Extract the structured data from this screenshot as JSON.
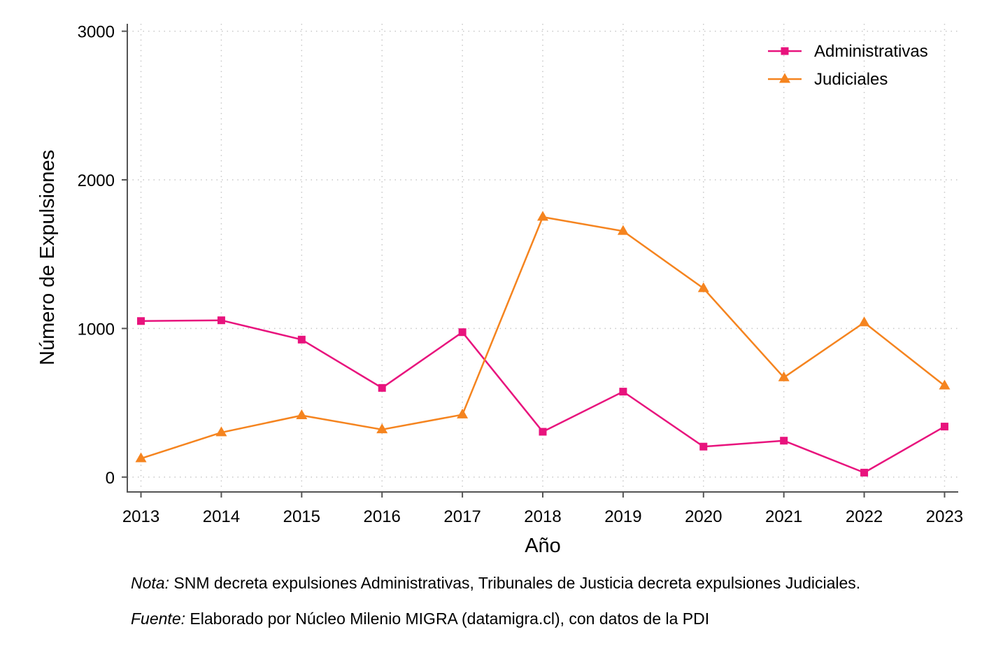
{
  "chart_data": {
    "type": "line",
    "xlabel": "Año",
    "ylabel": "Número de Expulsiones",
    "x": [
      2013,
      2014,
      2015,
      2016,
      2017,
      2018,
      2019,
      2020,
      2021,
      2022,
      2023
    ],
    "xticks": [
      "2013",
      "2014",
      "2015",
      "2016",
      "2017",
      "2018",
      "2019",
      "2020",
      "2021",
      "2022",
      "2023"
    ],
    "yticks": [
      0,
      1000,
      2000,
      3000
    ],
    "ylim": [
      -100,
      3050
    ],
    "xlim": [
      2012.83,
      2023.17
    ],
    "grid": true,
    "legend_position": "top-right",
    "series": [
      {
        "name": "Administrativas",
        "color": "#e8137d",
        "marker": "square",
        "values": [
          1050,
          1055,
          925,
          600,
          975,
          305,
          575,
          205,
          245,
          30,
          340
        ]
      },
      {
        "name": "Judiciales",
        "color": "#f5841f",
        "marker": "triangle",
        "values": [
          125,
          300,
          415,
          320,
          420,
          1750,
          1655,
          1270,
          670,
          1040,
          615
        ]
      }
    ]
  },
  "notes": {
    "note_label": "Nota:",
    "note_text": " SNM decreta expulsiones Administrativas, Tribunales de Justicia decreta expulsiones Judiciales.",
    "source_label": "Fuente:",
    "source_text": " Elaborado por Núcleo Milenio MIGRA (datamigra.cl), con datos de la PDI"
  }
}
